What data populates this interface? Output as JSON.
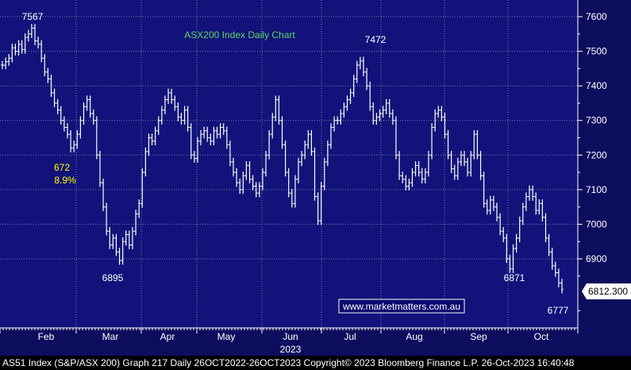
{
  "chart_data": {
    "type": "line",
    "title": "ASX200 Index Daily Chart",
    "watermark": "www.marketmatters.com.au",
    "xlabel": "2023",
    "ylabel": "",
    "ylim": [
      6640,
      7660
    ],
    "y_ticks": [
      6900,
      7000,
      7100,
      7200,
      7300,
      7400,
      7500,
      7600
    ],
    "y_tick_labels": [
      "6900",
      "7000",
      "7100",
      "7200",
      "7300",
      "7400",
      "7500",
      "7600"
    ],
    "x_tick_labels": [
      "Feb",
      "Mar",
      "Apr",
      "May",
      "Jun",
      "Jul",
      "Aug",
      "Sep",
      "Oct"
    ],
    "last_value": "6812.300",
    "annotations": {
      "high_jan": "7567",
      "high_jul": "7472",
      "low_mar": "6895",
      "low_oct1": "6871",
      "low_oct2": "6777",
      "drop_points": "672",
      "drop_pct": "8.9%"
    },
    "series": [
      {
        "values": [
          7460,
          7470,
          7480,
          7510,
          7500,
          7520,
          7505,
          7540,
          7550,
          7567,
          7530,
          7520,
          7480,
          7440,
          7420,
          7380,
          7350,
          7330,
          7300,
          7280,
          7260,
          7220,
          7230,
          7260,
          7300,
          7340,
          7360,
          7320,
          7300,
          7200,
          7120,
          7050,
          6980,
          6940,
          6960,
          6920,
          6895,
          6950,
          6970,
          6940,
          6980,
          7030,
          7060,
          7150,
          7210,
          7250,
          7240,
          7270,
          7300,
          7330,
          7360,
          7380,
          7360,
          7340,
          7310,
          7300,
          7330,
          7280,
          7200,
          7190,
          7240,
          7260,
          7270,
          7250,
          7240,
          7270,
          7260,
          7280,
          7270,
          7230,
          7180,
          7150,
          7120,
          7100,
          7140,
          7170,
          7130,
          7110,
          7090,
          7110,
          7150,
          7200,
          7260,
          7310,
          7360,
          7300,
          7230,
          7150,
          7090,
          7060,
          7130,
          7180,
          7200,
          7230,
          7260,
          7210,
          7080,
          7010,
          7110,
          7180,
          7230,
          7280,
          7300,
          7300,
          7320,
          7340,
          7360,
          7380,
          7420,
          7460,
          7472,
          7440,
          7400,
          7340,
          7300,
          7310,
          7320,
          7330,
          7350,
          7320,
          7300,
          7200,
          7140,
          7130,
          7110,
          7120,
          7150,
          7170,
          7150,
          7130,
          7150,
          7200,
          7280,
          7320,
          7330,
          7310,
          7260,
          7200,
          7160,
          7140,
          7180,
          7200,
          7180,
          7150,
          7200,
          7260,
          7200,
          7140,
          7060,
          7040,
          7070,
          7050,
          7020,
          6980,
          6960,
          6900,
          6871,
          6930,
          6960,
          7010,
          7050,
          7080,
          7100,
          7080,
          7040,
          7060,
          7020,
          6960,
          6920,
          6880,
          6860,
          6830,
          6812
        ]
      }
    ],
    "colors": {
      "background": "#0d0d5e",
      "plot_background": "#12127a",
      "grid": "#7d7db8",
      "line": "#ffffff",
      "title": "#5fd35f",
      "annotation_yellow": "#ffff00",
      "watermark_border": "#ffffff"
    }
  },
  "footer": {
    "text": "AS51 Index (S&P/ASX 200) Graph 217  Daily 26OCT2022-26OCT2023 Copyright© 2023 Bloomberg Finance L.P.  26-Oct-2023 16:40:48"
  }
}
